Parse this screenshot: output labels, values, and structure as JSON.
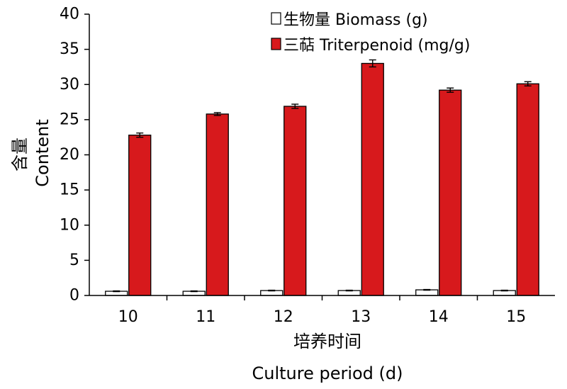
{
  "chart_data": {
    "type": "bar",
    "categories": [
      "10",
      "11",
      "12",
      "13",
      "14",
      "15"
    ],
    "series": [
      {
        "name": "生物量 Biomass (g)",
        "color": "#ffffff",
        "values": [
          0.6,
          0.6,
          0.7,
          0.7,
          0.8,
          0.7
        ],
        "errors": [
          0.05,
          0.05,
          0.05,
          0.05,
          0.05,
          0.05
        ]
      },
      {
        "name": "三萜 Triterpenoid (mg/g)",
        "color": "#d7191c",
        "values": [
          22.8,
          25.8,
          26.9,
          33.0,
          29.2,
          30.1
        ],
        "errors": [
          0.3,
          0.2,
          0.3,
          0.5,
          0.3,
          0.3
        ]
      }
    ],
    "xlabel_cn": "培养时间",
    "xlabel": "Culture period (d)",
    "ylabel_cn": "含量",
    "ylabel": "Content",
    "ylim": [
      0,
      40
    ],
    "yticks": [
      0,
      5,
      10,
      15,
      20,
      25,
      30,
      35,
      40
    ],
    "legend_position": "top-right",
    "grid": false
  }
}
